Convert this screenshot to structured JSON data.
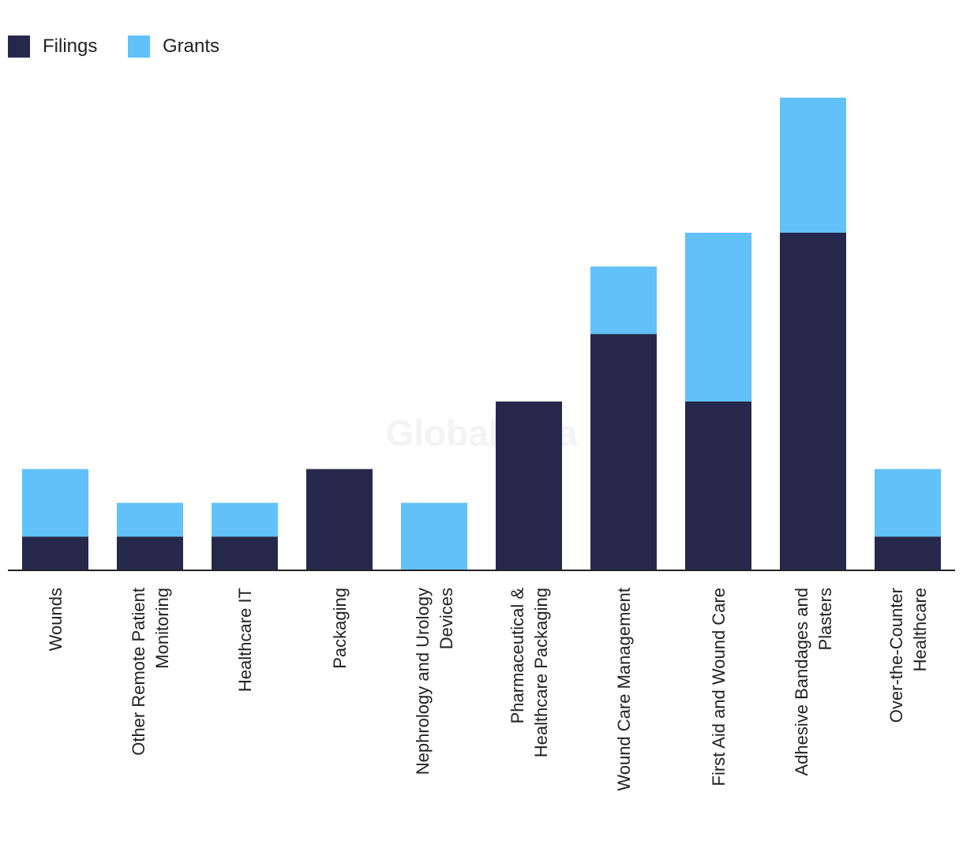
{
  "chart_data": {
    "type": "bar",
    "stacked": true,
    "title": "",
    "xlabel": "",
    "ylabel": "",
    "ylim": [
      0,
      14
    ],
    "grid": false,
    "legend_position": "top-left",
    "watermark": "GlobalData",
    "categories": [
      [
        "Wounds"
      ],
      [
        "Other Remote Patient",
        "Monitoring"
      ],
      [
        "Healthcare IT"
      ],
      [
        "Packaging"
      ],
      [
        "Nephrology and Urology",
        "Devices"
      ],
      [
        "Pharmaceutical &",
        "Healthcare Packaging"
      ],
      [
        "Wound Care Management"
      ],
      [
        "First Aid and Wound Care"
      ],
      [
        "Adhesive Bandages and",
        "Plasters"
      ],
      [
        "Over-the-Counter",
        "Healthcare"
      ]
    ],
    "series": [
      {
        "name": "Filings",
        "color": "#26284b",
        "values": [
          1,
          1,
          1,
          3,
          0,
          5,
          7,
          5,
          10,
          1
        ]
      },
      {
        "name": "Grants",
        "color": "#62c1f8",
        "values": [
          2,
          1,
          1,
          0,
          2,
          0,
          2,
          5,
          4,
          2
        ]
      }
    ]
  }
}
